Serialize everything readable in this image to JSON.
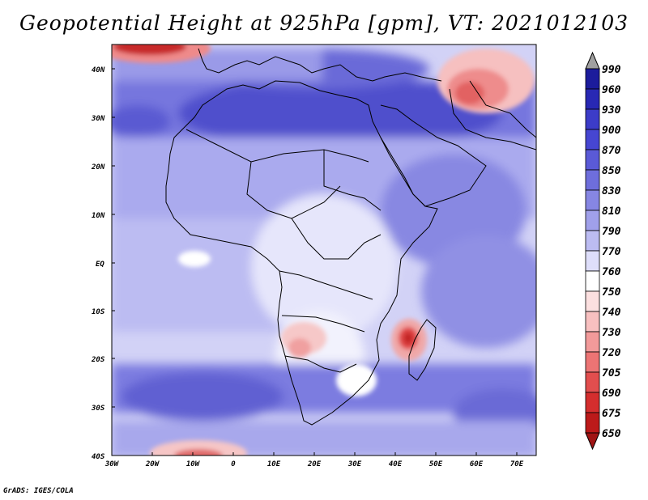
{
  "title": "Geopotential Height at 925hPa [gpm], VT: 2021012103",
  "footer": "GrADS: IGES/COLA",
  "map": {
    "lat_labels": [
      "40N",
      "30N",
      "20N",
      "10N",
      "EQ",
      "10S",
      "20S",
      "30S",
      "40S"
    ],
    "lon_labels": [
      "30W",
      "20W",
      "10W",
      "0",
      "10E",
      "20E",
      "30E",
      "40E",
      "50E",
      "60E",
      "70E"
    ],
    "lon_range": [
      -30,
      75
    ],
    "lat_range": [
      -40,
      45
    ]
  },
  "colorbar": {
    "levels": [
      "990",
      "960",
      "930",
      "900",
      "870",
      "850",
      "830",
      "810",
      "790",
      "770",
      "760",
      "750",
      "740",
      "730",
      "720",
      "705",
      "690",
      "675",
      "650"
    ],
    "colors": [
      "#a0a0a0",
      "#1c1c9c",
      "#2828b4",
      "#3c3cc8",
      "#4646d2",
      "#5a5ad7",
      "#6e6edc",
      "#8686e3",
      "#a0a0ea",
      "#bcbcf2",
      "#dedefa",
      "#ffffff",
      "#fce0e0",
      "#f8c0c0",
      "#f29a9a",
      "#ec7474",
      "#e24e4e",
      "#d42e2e",
      "#bc1a1a",
      "#a01414"
    ]
  },
  "colors": {
    "background": "#dadaf8",
    "high_blue": "#4848cc",
    "low_red": "#e04848"
  }
}
